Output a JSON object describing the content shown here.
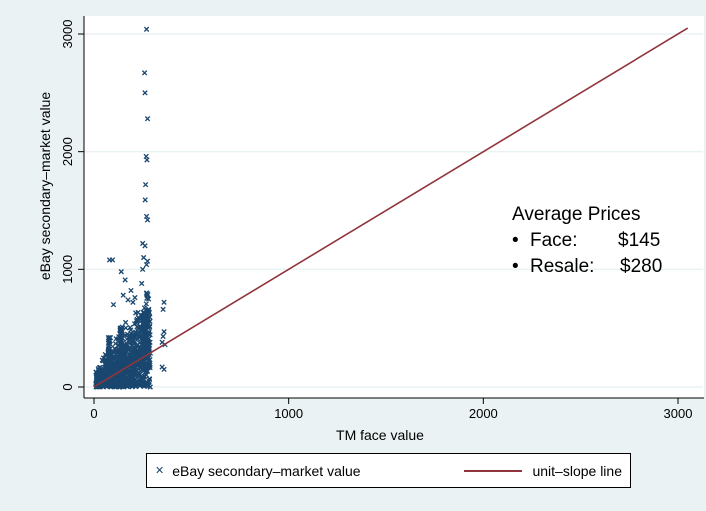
{
  "chart_data": {
    "type": "scatter",
    "title": "",
    "xlabel": "TM face value",
    "ylabel": "eBay secondary–market value",
    "xlim": [
      -50,
      3100
    ],
    "ylim": [
      -100,
      3100
    ],
    "xticks": [
      "0",
      "1000",
      "2000",
      "3000"
    ],
    "yticks": [
      "0",
      "1000",
      "2000",
      "3000"
    ],
    "xtick_values": [
      0,
      1000,
      2000,
      3000
    ],
    "ytick_values": [
      0,
      1000,
      2000,
      3000
    ],
    "grid": "horizontal",
    "colors": {
      "scatter": "#1a476f",
      "line": "#90353b",
      "plot_bg": "#ffffff",
      "outer_bg": "#eaf2f3",
      "grid": "#eaf2f3"
    },
    "series": [
      {
        "name": "eBay secondary–market value",
        "kind": "scatter",
        "marker": "x",
        "points": [
          [
            270,
            3040
          ],
          [
            260,
            2670
          ],
          [
            262,
            2500
          ],
          [
            275,
            2280
          ],
          [
            268,
            1960
          ],
          [
            272,
            1930
          ],
          [
            265,
            1720
          ],
          [
            263,
            1590
          ],
          [
            270,
            1450
          ],
          [
            275,
            1420
          ],
          [
            250,
            1220
          ],
          [
            262,
            1200
          ],
          [
            255,
            1100
          ],
          [
            275,
            1070
          ],
          [
            80,
            1080
          ],
          [
            95,
            1080
          ],
          [
            140,
            980
          ],
          [
            160,
            910
          ],
          [
            250,
            1000
          ],
          [
            270,
            1040
          ],
          [
            360,
            720
          ],
          [
            355,
            660
          ],
          [
            360,
            470
          ],
          [
            355,
            430
          ],
          [
            350,
            380
          ],
          [
            365,
            360
          ],
          [
            350,
            170
          ],
          [
            360,
            150
          ],
          [
            200,
            720
          ],
          [
            210,
            760
          ],
          [
            190,
            820
          ],
          [
            245,
            880
          ],
          [
            150,
            780
          ],
          [
            175,
            740
          ],
          [
            100,
            700
          ]
        ],
        "cluster": {
          "x_range": [
            10,
            290
          ],
          "y_range": [
            0,
            700
          ],
          "note": "dense mass of points"
        }
      },
      {
        "name": "unit–slope line",
        "kind": "line",
        "points": [
          [
            0,
            0
          ],
          [
            3050,
            3050
          ]
        ]
      }
    ],
    "legend": {
      "position": "bottom",
      "entries": [
        "eBay secondary–market value",
        "unit–slope line"
      ]
    },
    "annotation": {
      "heading": "Average Prices",
      "rows": [
        {
          "bullet": "•",
          "label": "Face:",
          "value": "$145"
        },
        {
          "bullet": "•",
          "label": "Resale:",
          "value": "$280"
        }
      ]
    }
  }
}
